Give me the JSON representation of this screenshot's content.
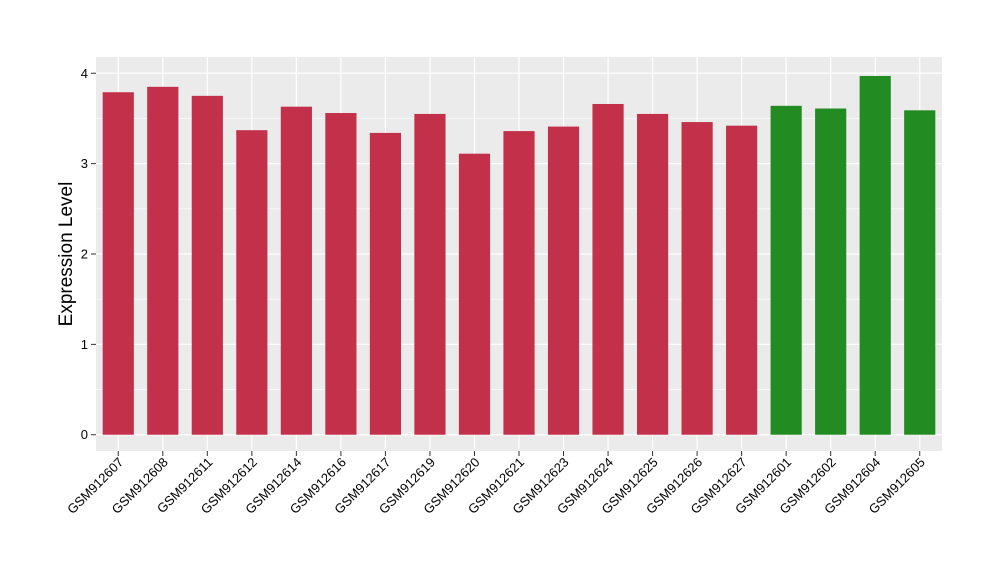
{
  "chart_data": {
    "type": "bar",
    "title": "",
    "xlabel": "",
    "ylabel": "Expression Level",
    "ylim": [
      -0.18,
      4.18
    ],
    "yticks": [
      0,
      1,
      2,
      3,
      4
    ],
    "grid": true,
    "legend": "none",
    "colors": {
      "panel_background": "#EBEBEB",
      "grid": "#FFFFFF",
      "group_a": "#C3304A",
      "group_b": "#228B22"
    },
    "categories": [
      "GSM912607",
      "GSM912608",
      "GSM912611",
      "GSM912612",
      "GSM912614",
      "GSM912616",
      "GSM912617",
      "GSM912619",
      "GSM912620",
      "GSM912621",
      "GSM912623",
      "GSM912624",
      "GSM912625",
      "GSM912626",
      "GSM912627",
      "GSM912601",
      "GSM912602",
      "GSM912604",
      "GSM912605"
    ],
    "values": [
      3.79,
      3.85,
      3.75,
      3.37,
      3.63,
      3.56,
      3.34,
      3.55,
      3.11,
      3.36,
      3.41,
      3.66,
      3.55,
      3.46,
      3.42,
      3.64,
      3.61,
      3.97,
      3.59
    ],
    "bar_colors": [
      "#C3304A",
      "#C3304A",
      "#C3304A",
      "#C3304A",
      "#C3304A",
      "#C3304A",
      "#C3304A",
      "#C3304A",
      "#C3304A",
      "#C3304A",
      "#C3304A",
      "#C3304A",
      "#C3304A",
      "#C3304A",
      "#C3304A",
      "#228B22",
      "#228B22",
      "#228B22",
      "#228B22"
    ]
  }
}
